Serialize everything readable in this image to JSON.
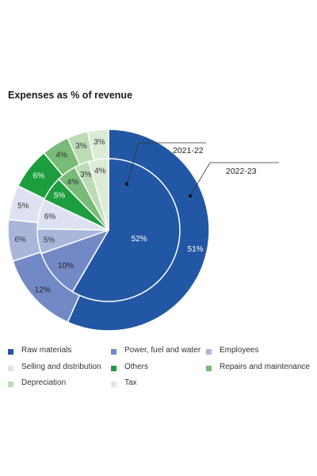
{
  "chart_data": {
    "type": "pie",
    "title": "Expenses as % of revenue",
    "categories": [
      "Raw materials",
      "Power, fuel and water",
      "Employees",
      "Selling and distribution",
      "Others",
      "Repairs and maintenance",
      "Depreciation",
      "Tax"
    ],
    "colors": [
      "#2257a5",
      "#7389c6",
      "#aab5dc",
      "#dde1f0",
      "#1c9e3e",
      "#77bb77",
      "#bcdcb4",
      "#dcebd8"
    ],
    "series": [
      {
        "name": "2021-22",
        "values": [
          52,
          10,
          5,
          6,
          5,
          4,
          3,
          4
        ]
      },
      {
        "name": "2022-23",
        "values": [
          51,
          12,
          6,
          5,
          6,
          4,
          3,
          3
        ]
      }
    ],
    "unit": "%",
    "legend_position": "bottom"
  }
}
